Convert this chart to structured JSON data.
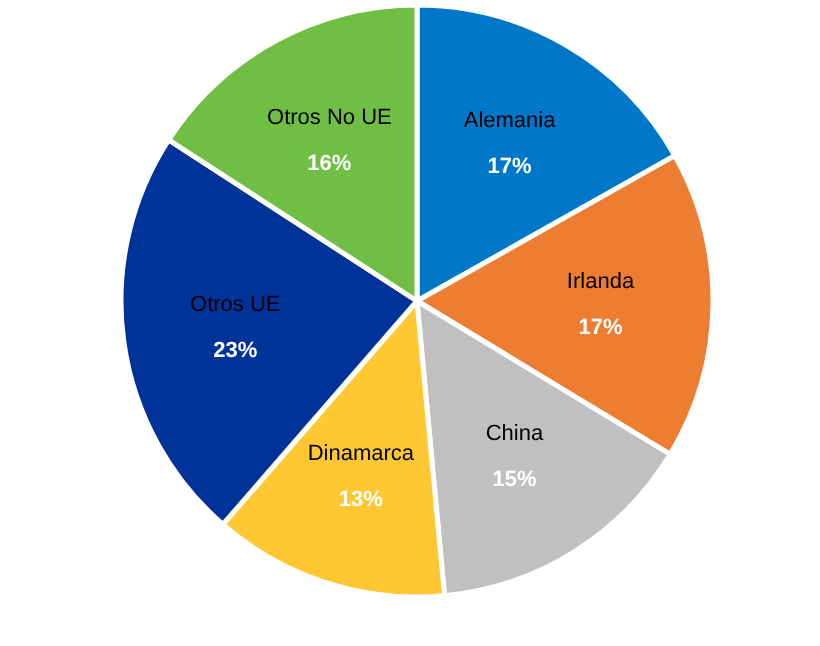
{
  "chart_data": {
    "type": "pie",
    "categories": [
      "Alemania",
      "Irlanda",
      "China",
      "Dinamarca",
      "Otros UE",
      "Otros No UE"
    ],
    "values": [
      17,
      17,
      15,
      13,
      23,
      16
    ],
    "colors": [
      "#0077c8",
      "#ed7d31",
      "#c0c0c0",
      "#ffc832",
      "#003399",
      "#70bf44"
    ],
    "value_labels": [
      "17%",
      "17%",
      "15%",
      "13%",
      "23%",
      "16%"
    ]
  }
}
